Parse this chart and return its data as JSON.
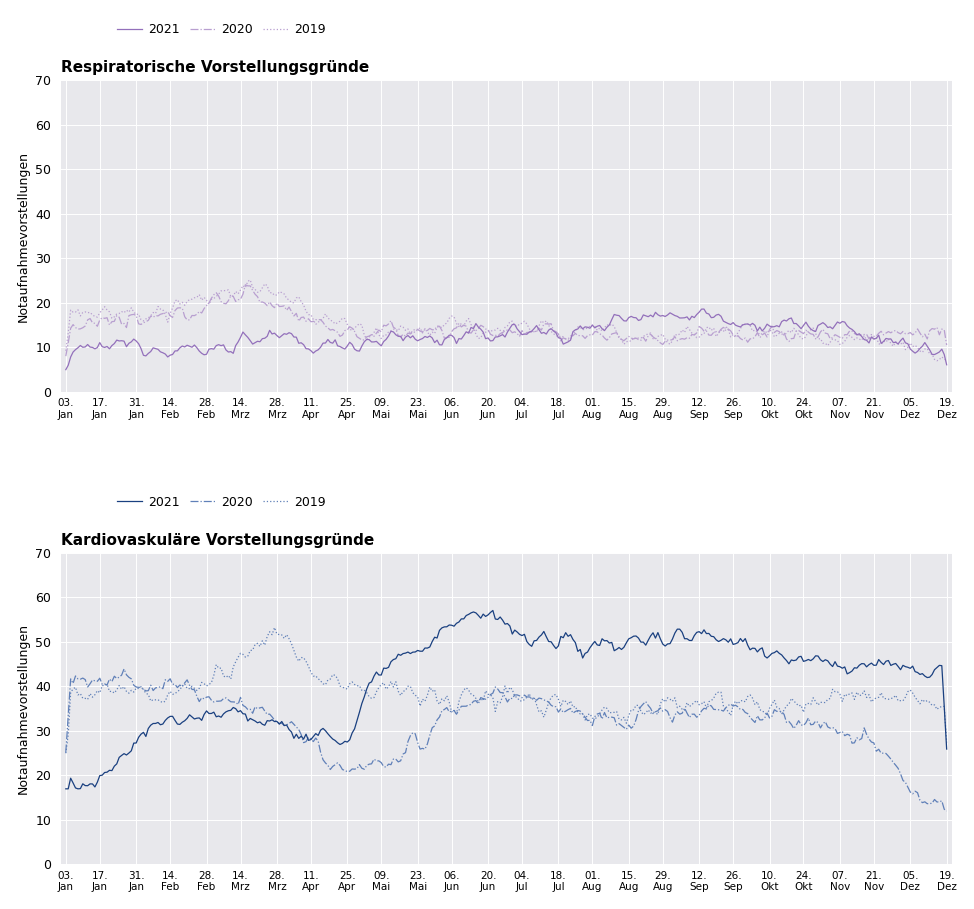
{
  "title1": "Respiratorische Vorstellungsgründe",
  "title2": "Kardiovaskuläre Vorstellungsgründe",
  "ylabel": "Notaufnahmevorstellungen",
  "legend_labels": [
    "2021",
    "2020",
    "2019"
  ],
  "color_resp": "#9370BB",
  "color_resp_light": "#B89FD0",
  "color_card": "#1A4080",
  "color_card_light": "#6080B8",
  "background_color": "#E8E8EC",
  "ylim": [
    0,
    70
  ],
  "yticks": [
    0,
    10,
    20,
    30,
    40,
    50,
    60,
    70
  ],
  "xtick_labels": [
    "03.\nJan",
    "17.\nJan",
    "31.\nJan",
    "14.\nFeb",
    "28.\nFeb",
    "14.\nMrz",
    "28.\nMrz",
    "11.\nApr",
    "25.\nApr",
    "09.\nMai",
    "23.\nMai",
    "06.\nJun",
    "20.\nJun",
    "04.\nJul",
    "18.\nJul",
    "01.\nAug",
    "15.\nAug",
    "29.\nAug",
    "12.\nSep",
    "26.\nSep",
    "10.\nOkt",
    "24.\nOkt",
    "07.\nNov",
    "21.\nNov",
    "05.\nDez",
    "19.\nDez"
  ]
}
